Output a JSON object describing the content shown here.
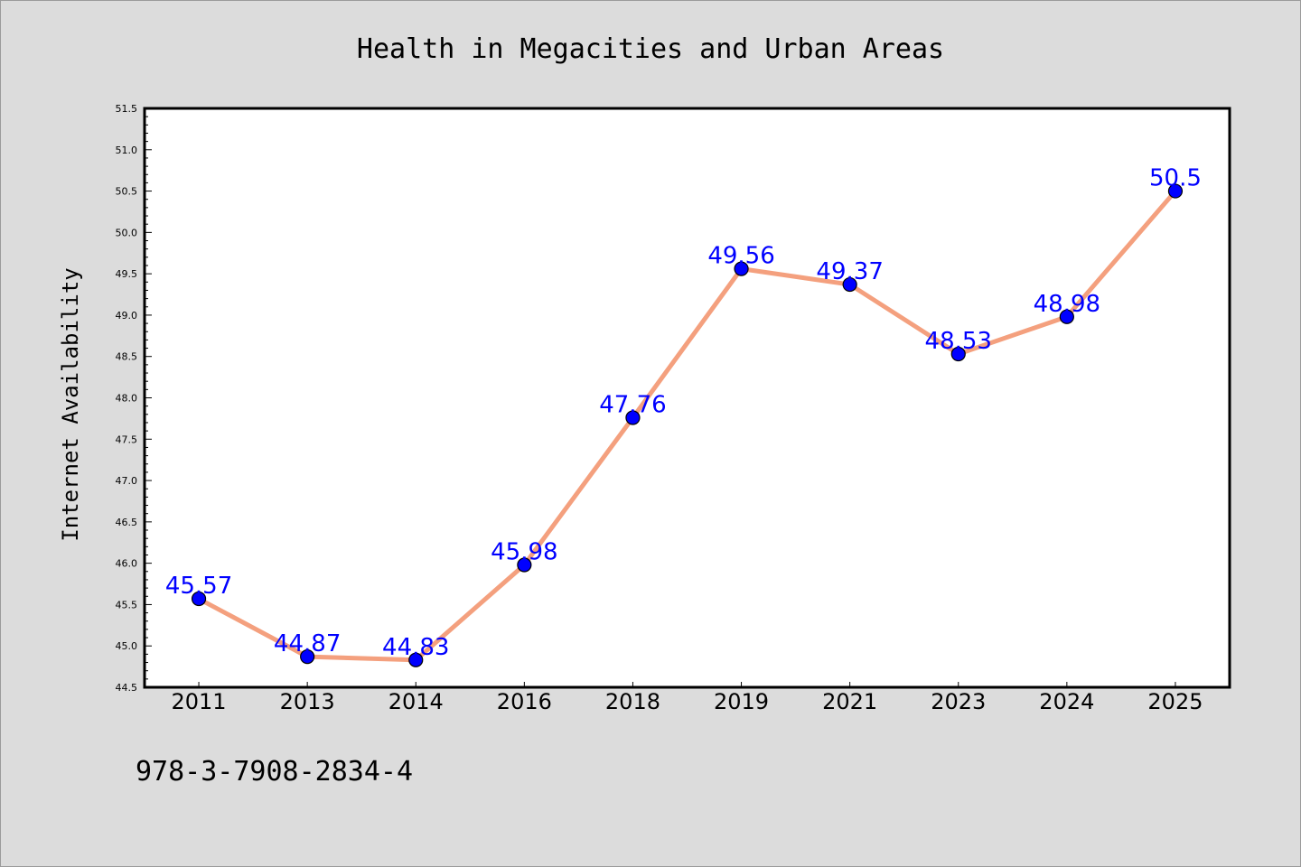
{
  "chart_data": {
    "type": "line",
    "title": "Health in Megacities and Urban Areas",
    "xlabel": "",
    "ylabel": "Internet Availability",
    "categories": [
      "2011",
      "2013",
      "2014",
      "2016",
      "2018",
      "2019",
      "2021",
      "2023",
      "2024",
      "2025"
    ],
    "series": [
      {
        "values": [
          45.57,
          44.87,
          44.83,
          45.98,
          47.76,
          49.56,
          49.37,
          48.53,
          48.98,
          50.5
        ],
        "data_labels": [
          "45.57",
          "44.87",
          "44.83",
          "45.98",
          "47.76",
          "49.56",
          "49.37",
          "48.53",
          "48.98",
          "50.5"
        ]
      }
    ],
    "ylim": [
      44.5,
      51.5
    ],
    "yticks": [
      "44.5",
      "45.0",
      "45.5",
      "46.0",
      "46.5",
      "47.0",
      "47.5",
      "48.0",
      "48.5",
      "49.0",
      "49.5",
      "50.0",
      "50.5",
      "51.0",
      "51.5"
    ],
    "grid": false,
    "colors": {
      "line": "#f4a07e",
      "marker": "#0000ff",
      "marker_edge": "#000000",
      "data_label": "#0000ff",
      "background": "#dcdcdc",
      "plot_background": "#ffffff"
    }
  },
  "footer": {
    "isbn": "978-3-7908-2834-4"
  }
}
